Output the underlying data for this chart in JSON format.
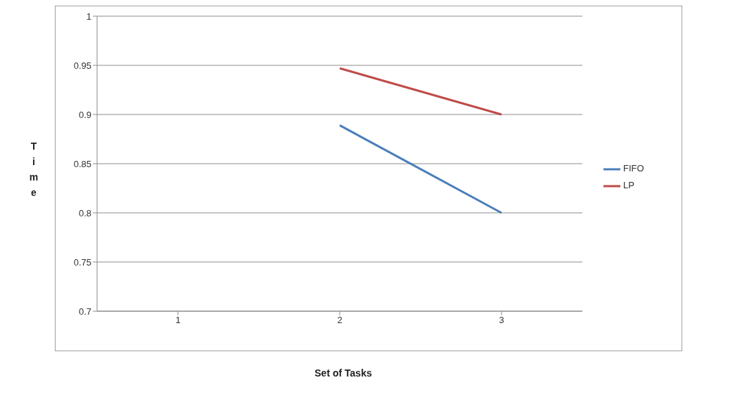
{
  "chart_data": {
    "type": "line",
    "xlabel": "Set of Tasks",
    "ylabel": "Time",
    "categories": [
      "1",
      "2",
      "3"
    ],
    "series": [
      {
        "name": "FIFO",
        "color": "#4a7ebb",
        "values": [
          null,
          0.889,
          0.8
        ]
      },
      {
        "name": "LP",
        "color": "#be4b48",
        "values": [
          null,
          0.947,
          0.9
        ]
      }
    ],
    "ylim": [
      0.7,
      1
    ],
    "yticks": [
      0.7,
      0.75,
      0.8,
      0.85,
      0.9,
      0.95,
      1
    ],
    "grid": "y",
    "legend": "right",
    "marker": "none",
    "line_style": "solid"
  }
}
